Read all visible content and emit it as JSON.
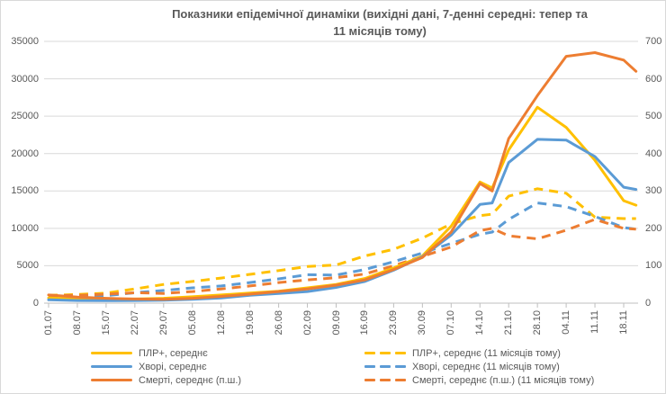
{
  "title": {
    "line1": "Показники епідемічної динаміки (вихідні дані, 7-денні середні: тепер та",
    "line2": "11 місяців тому)"
  },
  "colors": {
    "yellow": "#FFC000",
    "blue": "#5B9BD5",
    "orange": "#ED7D31",
    "text": "#595959",
    "gridline": "#D9D9D9",
    "axis": "#BFBFBF"
  },
  "chart_data": {
    "type": "line",
    "x_tick_labels": [
      "01.07",
      "08.07",
      "15.07",
      "22.07",
      "29.07",
      "05.08",
      "12.08",
      "19.08",
      "26.08",
      "02.09",
      "09.09",
      "16.09",
      "23.09",
      "30.09",
      "07.10",
      "14.10",
      "21.10",
      "28.10",
      "04.11",
      "11.11",
      "18.11"
    ],
    "x_days": [
      0,
      7,
      14,
      21,
      28,
      35,
      42,
      49,
      56,
      63,
      70,
      77,
      84,
      91,
      98,
      105,
      108,
      112,
      119,
      126,
      133,
      140,
      143
    ],
    "left_axis": {
      "min": 0,
      "max": 35000,
      "step": 5000,
      "tick_labels": [
        "0",
        "5000",
        "10000",
        "15000",
        "20000",
        "25000",
        "30000",
        "35000"
      ]
    },
    "right_axis": {
      "min": 0,
      "max": 700,
      "step": 100,
      "tick_labels": [
        "0",
        "100",
        "200",
        "300",
        "400",
        "500",
        "600",
        "700"
      ]
    },
    "grid": "horizontal",
    "legend_position": "bottom-two-columns",
    "series": [
      {
        "label": "ПЛР+, середнє (11 місяців тому)",
        "color": "yellow",
        "dash": true,
        "axis": "left",
        "values": [
          1050,
          1150,
          1350,
          1900,
          2500,
          2900,
          3350,
          3850,
          4350,
          4900,
          5100,
          6300,
          7200,
          8700,
          10600,
          11700,
          11900,
          14300,
          15300,
          14700,
          11500,
          11300,
          11300
        ]
      },
      {
        "label": "Хворі, середнє (11 місяців тому)",
        "color": "blue",
        "dash": true,
        "axis": "left",
        "values": [
          800,
          850,
          1000,
          1400,
          1700,
          2050,
          2300,
          2750,
          3250,
          3800,
          3750,
          4500,
          5550,
          6700,
          8000,
          9200,
          9500,
          11200,
          13400,
          12900,
          11600,
          10100,
          9900
        ]
      },
      {
        "label": "Смерті, середнє (п.ш.) (11 місяців тому)",
        "color": "orange",
        "dash": true,
        "axis": "right",
        "values": [
          20,
          21,
          24,
          28,
          26,
          31,
          38,
          46,
          55,
          62,
          68,
          78,
          100,
          125,
          150,
          194,
          200,
          180,
          172,
          195,
          224,
          200,
          198
        ]
      },
      {
        "label": "ПЛР+, середнє",
        "color": "yellow",
        "dash": false,
        "axis": "left",
        "values": [
          700,
          550,
          500,
          550,
          650,
          850,
          1100,
          1350,
          1600,
          2050,
          2500,
          3300,
          4700,
          6300,
          10300,
          16200,
          15400,
          20500,
          26200,
          23500,
          19100,
          13700,
          13100
        ]
      },
      {
        "label": "Хворі, середнє",
        "color": "blue",
        "dash": false,
        "axis": "left",
        "values": [
          450,
          350,
          320,
          350,
          400,
          500,
          700,
          1050,
          1300,
          1550,
          2100,
          2900,
          4400,
          6200,
          9100,
          13200,
          13400,
          18800,
          21900,
          21800,
          19600,
          15500,
          15200
        ]
      },
      {
        "label": "Смерті, середнє (п.ш.)",
        "color": "orange",
        "dash": false,
        "axis": "right",
        "values": [
          22,
          16,
          13,
          11,
          10,
          13,
          18,
          24,
          31,
          38,
          48,
          62,
          90,
          122,
          190,
          320,
          300,
          440,
          555,
          660,
          670,
          650,
          620
        ]
      }
    ]
  }
}
